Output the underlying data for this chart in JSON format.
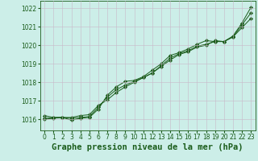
{
  "title": "Graphe pression niveau de la mer (hPa)",
  "bg_color": "#cceee8",
  "grid_color": "#c8b8c8",
  "line_color": "#1a5c1a",
  "marker_color": "#1a5c1a",
  "xlim_min": -0.5,
  "xlim_max": 23.5,
  "ylim_min": 1015.4,
  "ylim_max": 1022.4,
  "yticks": [
    1016,
    1017,
    1018,
    1019,
    1020,
    1021,
    1022
  ],
  "xticks": [
    0,
    1,
    2,
    3,
    4,
    5,
    6,
    7,
    8,
    9,
    10,
    11,
    12,
    13,
    14,
    15,
    16,
    17,
    18,
    19,
    20,
    21,
    22,
    23
  ],
  "series1": [
    1016.2,
    1016.1,
    1016.1,
    1016.1,
    1016.2,
    1016.25,
    1016.75,
    1017.05,
    1017.45,
    1017.75,
    1018.0,
    1018.25,
    1018.5,
    1018.85,
    1019.2,
    1019.5,
    1019.65,
    1019.9,
    1020.0,
    1020.25,
    1020.2,
    1020.45,
    1020.95,
    1021.45
  ],
  "series2": [
    1016.05,
    1016.1,
    1016.1,
    1016.05,
    1016.1,
    1016.15,
    1016.65,
    1017.2,
    1017.6,
    1017.85,
    1018.05,
    1018.25,
    1018.5,
    1018.9,
    1019.3,
    1019.55,
    1019.7,
    1019.95,
    1020.05,
    1020.2,
    1020.2,
    1020.45,
    1021.1,
    1021.75
  ],
  "series3": [
    1016.0,
    1016.05,
    1016.1,
    1015.95,
    1016.05,
    1016.1,
    1016.55,
    1017.3,
    1017.75,
    1018.05,
    1018.1,
    1018.3,
    1018.65,
    1019.0,
    1019.45,
    1019.6,
    1019.8,
    1020.05,
    1020.25,
    1020.2,
    1020.2,
    1020.5,
    1021.2,
    1022.05
  ],
  "title_fontsize": 7.5,
  "tick_fontsize": 5.5,
  "title_color": "#1a5c1a",
  "linewidth": 0.7,
  "markersize": 2.2
}
